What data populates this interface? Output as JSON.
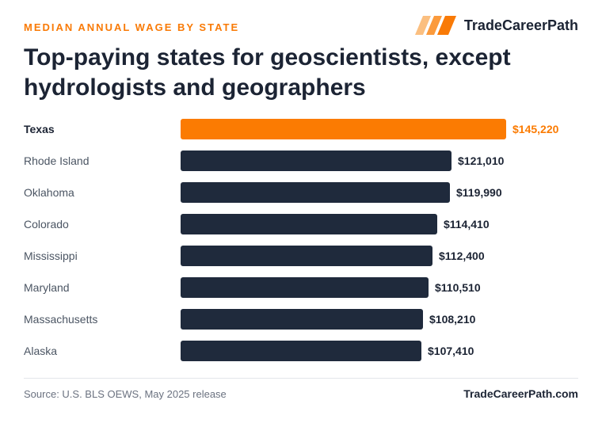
{
  "header": {
    "eyebrow": "MEDIAN ANNUAL WAGE BY STATE",
    "brand_name": "TradeCareerPath",
    "brand_icon": "stripes-logo-icon",
    "title": "Top-paying states for geoscientists, except hydrologists and geographers"
  },
  "chart_data": {
    "type": "bar",
    "orientation": "horizontal",
    "categories": [
      "Texas",
      "Rhode Island",
      "Oklahoma",
      "Colorado",
      "Mississippi",
      "Maryland",
      "Massachusetts",
      "Alaska"
    ],
    "values": [
      145220,
      121010,
      119990,
      114410,
      112400,
      110510,
      108210,
      107410
    ],
    "value_labels": [
      "$145,220",
      "$121,010",
      "$119,990",
      "$114,410",
      "$112,400",
      "$110,510",
      "$108,210",
      "$107,410"
    ],
    "highlight_category": "Texas",
    "grid": false,
    "legend": "none",
    "xlim": [
      0,
      145220
    ]
  },
  "colors": {
    "highlight": "#fb7b02",
    "bar": "#1f2a3c",
    "text_dark": "#1c2434",
    "text_muted": "#4b5563"
  },
  "footer": {
    "source": "Source: U.S. BLS OEWS, May 2025 release",
    "site": "TradeCareerPath.com"
  }
}
